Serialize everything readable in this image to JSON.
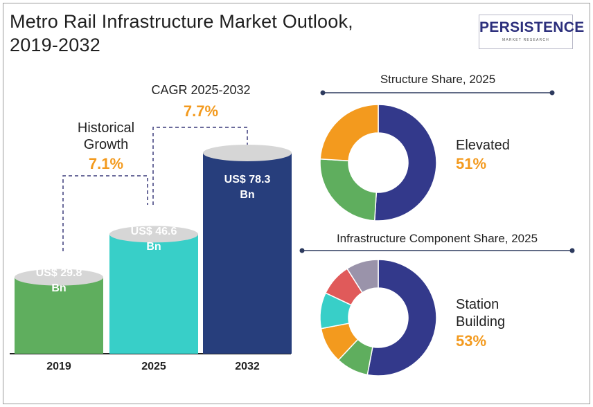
{
  "title_line1": "Metro Rail Infrastructure Market Outlook,",
  "title_line2": "2019-2032",
  "logo": {
    "main": "PERSISTENCE",
    "sub": "MARKET RESEARCH"
  },
  "colors": {
    "green": "#5fae5e",
    "teal": "#38cfc8",
    "navy": "#273e7c",
    "orange": "#f39a1e",
    "donut_navy": "#33398b",
    "red": "#e05a5a",
    "gray": "#9a93aa"
  },
  "annotations": {
    "historical_label_1": "Historical",
    "historical_label_2": "Growth",
    "historical_value": "7.1%",
    "cagr_label": "CAGR 2025-2032",
    "cagr_value": "7.7%"
  },
  "chart_data": [
    {
      "type": "bar",
      "title": "",
      "categories": [
        "2019",
        "2025",
        "2032"
      ],
      "values": [
        29.8,
        46.6,
        78.3
      ],
      "value_labels_line1": [
        "US$ 29.8",
        "US$ 46.6",
        "US$ 78.3"
      ],
      "value_labels_line2": [
        "Bn",
        "Bn",
        "Bn"
      ],
      "bar_colors": [
        "#5fae5e",
        "#38cfc8",
        "#273e7c"
      ],
      "xlabel": "",
      "ylabel": ""
    },
    {
      "type": "pie",
      "title": "Structure Share, 2025",
      "highlight_label": "Elevated",
      "highlight_value": "51%",
      "slices": [
        {
          "value": 51,
          "color": "#33398b"
        },
        {
          "value": 25,
          "color": "#5fae5e"
        },
        {
          "value": 24,
          "color": "#f39a1e"
        }
      ]
    },
    {
      "type": "pie",
      "title": "Infrastructure Component Share, 2025",
      "highlight_label_line1": "Station",
      "highlight_label_line2": "Building",
      "highlight_value": "53%",
      "slices": [
        {
          "value": 53,
          "color": "#33398b"
        },
        {
          "value": 9,
          "color": "#5fae5e"
        },
        {
          "value": 10,
          "color": "#f39a1e"
        },
        {
          "value": 10,
          "color": "#38cfc8"
        },
        {
          "value": 9,
          "color": "#e05a5a"
        },
        {
          "value": 9,
          "color": "#9a93aa"
        }
      ]
    }
  ]
}
